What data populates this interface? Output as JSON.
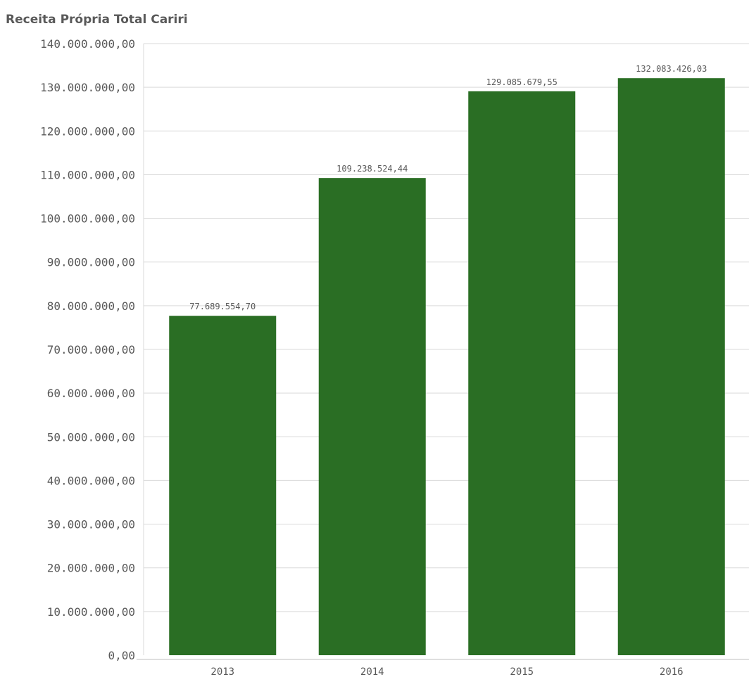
{
  "chart_data": {
    "type": "bar",
    "title": "Receita Própria Total Cariri",
    "categories": [
      "2013",
      "2014",
      "2015",
      "2016"
    ],
    "values": [
      77689554.7,
      109238524.44,
      129085679.55,
      132083426.03
    ],
    "value_labels": [
      "77.689.554,70",
      "109.238.524,44",
      "129.085.679,55",
      "132.083.426,03"
    ],
    "ylim": [
      0,
      140000000
    ],
    "yticks": [
      0,
      10000000,
      20000000,
      30000000,
      40000000,
      50000000,
      60000000,
      70000000,
      80000000,
      90000000,
      100000000,
      110000000,
      120000000,
      130000000,
      140000000
    ],
    "ytick_labels": [
      "0,00",
      "10.000.000,00",
      "20.000.000,00",
      "30.000.000,00",
      "40.000.000,00",
      "50.000.000,00",
      "60.000.000,00",
      "70.000.000,00",
      "80.000.000,00",
      "90.000.000,00",
      "100.000.000,00",
      "110.000.000,00",
      "120.000.000,00",
      "130.000.000,00",
      "140.000.000,00"
    ],
    "grid": true,
    "bar_color": "#2a6e24"
  }
}
